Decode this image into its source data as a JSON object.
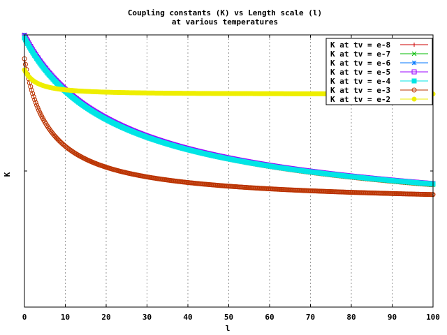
{
  "chart_data": {
    "type": "line",
    "title": "Coupling constants (K) vs Length scale (l)",
    "subtitle": "at various temperatures",
    "xlabel": "l",
    "ylabel": "K",
    "xlim": [
      0,
      100
    ],
    "ylim": [
      0,
      1
    ],
    "xticks": [
      "0",
      "10",
      "20",
      "30",
      "40",
      "50",
      "60",
      "70",
      "80",
      "90",
      "100"
    ],
    "grid": "vertical dotted",
    "legend_position": "top-right",
    "sampling_step": 0.25,
    "series": [
      {
        "name": "K at tv = e-8",
        "color": "#cc0000",
        "marker": "plus",
        "asymptote": 0.241,
        "amplitude": 1.0,
        "decay": 0.0595,
        "power": 0.67
      },
      {
        "name": "K at tv = e-7",
        "color": "#00bb00",
        "marker": "cross",
        "asymptote": 0.242,
        "amplitude": 1.0,
        "decay": 0.059,
        "power": 0.67
      },
      {
        "name": "K at tv = e-6",
        "color": "#0077ff",
        "marker": "star",
        "asymptote": 0.243,
        "amplitude": 0.999,
        "decay": 0.0585,
        "power": 0.67
      },
      {
        "name": "K at tv = e-5",
        "color": "#9900ff",
        "marker": "box",
        "asymptote": 0.245,
        "amplitude": 0.998,
        "decay": 0.058,
        "power": 0.67
      },
      {
        "name": "K at tv = e-4",
        "color": "#00e5e5",
        "marker": "filled-box",
        "asymptote": 0.257,
        "amplitude": 0.985,
        "decay": 0.056,
        "power": 0.7
      },
      {
        "name": "K at tv = e-3",
        "color": "#bb3300",
        "marker": "circle",
        "asymptote": 0.373,
        "amplitude": 0.86,
        "decay": 0.18,
        "power": 0.88
      },
      {
        "name": "K at tv = e-2",
        "color": "#eeee00",
        "marker": "filled-circle",
        "asymptote": 0.782,
        "amplitude": 0.41,
        "decay": 0.24,
        "power": 1.4
      }
    ]
  }
}
